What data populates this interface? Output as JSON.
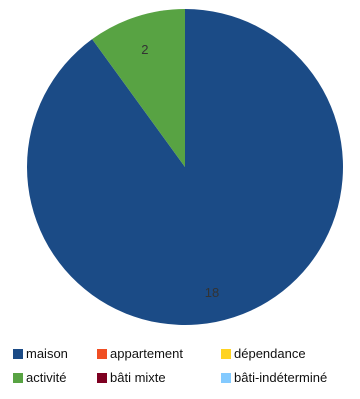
{
  "chart_data": {
    "type": "pie",
    "title": "",
    "slices": [
      {
        "label": "maison",
        "value": 18,
        "color": "#1b4b86",
        "data_label": "18"
      },
      {
        "label": "appartement",
        "value": 0,
        "color": "#f04e23",
        "data_label": ""
      },
      {
        "label": "dépendance",
        "value": 0,
        "color": "#ffd320",
        "data_label": ""
      },
      {
        "label": "activité",
        "value": 2,
        "color": "#58a343",
        "data_label": "2"
      },
      {
        "label": "bâti mixte",
        "value": 0,
        "color": "#7e0021",
        "data_label": ""
      },
      {
        "label": "bâti-indéterminé",
        "value": 0,
        "color": "#83caff",
        "data_label": ""
      }
    ],
    "legend": {
      "placement": "bottom",
      "entries": [
        "maison",
        "appartement",
        "dépendance",
        "activité",
        "bâti mixte",
        "bâti-indéterminé"
      ]
    }
  }
}
